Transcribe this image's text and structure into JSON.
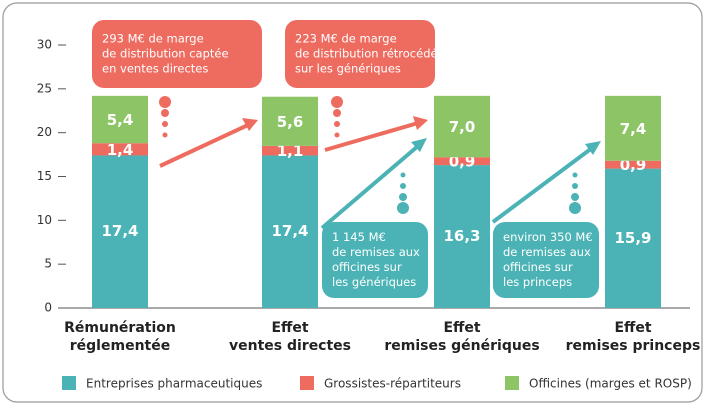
{
  "chart_data": {
    "type": "stacked_bar",
    "categories": [
      [
        "Rémunération",
        "réglementée"
      ],
      [
        "Effet",
        "ventes directes"
      ],
      [
        "Effet",
        "remises génériques"
      ],
      [
        "Effet",
        "remises princeps"
      ]
    ],
    "series": [
      {
        "name": "Entreprises pharmaceutiques",
        "color": "#4bb3b5",
        "values": [
          17.4,
          17.4,
          16.3,
          15.9
        ],
        "value_labels": [
          "17,4",
          "17,4",
          "16,3",
          "15,9"
        ]
      },
      {
        "name": "Grossistes-répartiteurs",
        "color": "#ee6b60",
        "values": [
          1.4,
          1.1,
          0.9,
          0.9
        ],
        "value_labels": [
          "1,4",
          "1,1",
          "0,9",
          "0,9"
        ]
      },
      {
        "name": "Officines (marges et ROSP)",
        "color": "#8dc465",
        "values": [
          5.4,
          5.6,
          7.0,
          7.4
        ],
        "value_labels": [
          "5,4",
          "5,6",
          "7,0",
          "7,4"
        ]
      }
    ],
    "ylim": [
      0,
      30
    ],
    "yticks": [
      0,
      5,
      10,
      15,
      20,
      25,
      30
    ],
    "annotations": [
      {
        "lines": [
          "293 M€ de marge",
          "de distribution captée",
          "en ventes directes"
        ]
      },
      {
        "lines": [
          "223 M€ de marge",
          "de distribution rétrocédée",
          "sur les génériques"
        ]
      },
      {
        "lines": [
          "1 145 M€",
          "de remises aux",
          "officines sur",
          "les génériques"
        ]
      },
      {
        "lines": [
          "environ 350 M€",
          "de remises aux",
          "officines sur",
          "les princeps"
        ]
      }
    ]
  }
}
